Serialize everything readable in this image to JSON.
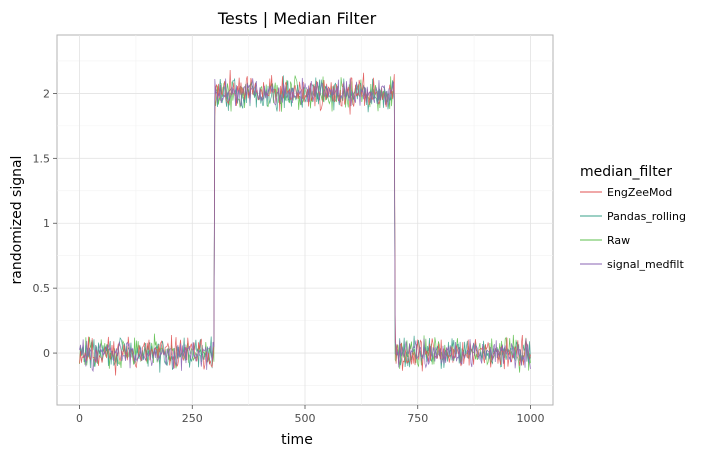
{
  "chart_data": {
    "type": "line",
    "title": "Tests | Median Filter",
    "xlabel": "time",
    "ylabel": "randomized signal",
    "xlim": [
      -50,
      1050
    ],
    "ylim": [
      -0.4,
      2.45
    ],
    "xticks": [
      0,
      250,
      500,
      750,
      1000
    ],
    "xtick_labels": [
      "0",
      "250",
      "500",
      "750",
      "1000"
    ],
    "yticks": [
      0,
      0.5,
      1,
      1.5,
      2
    ],
    "ytick_labels": [
      "0",
      "0.5",
      "1",
      "1.5",
      "2"
    ],
    "grid": true,
    "legend": {
      "title": "median_filter",
      "position": "right"
    },
    "signal": {
      "description_points": "piecewise: level 0 for t<300, level 2 for 300<=t<700, level 0 for t>=700, t from 0 to 1000",
      "t_start": 0,
      "t_end": 1000,
      "step_up": 300,
      "step_down": 700,
      "low_level": 0,
      "high_level": 2,
      "noise_amplitude": 0.1
    },
    "series": [
      {
        "name": "EngZeeMod",
        "color": "#e05252"
      },
      {
        "name": "Pandas_rolling",
        "color": "#3aa08a"
      },
      {
        "name": "Raw",
        "color": "#5cbf4c"
      },
      {
        "name": "signal_medfilt",
        "color": "#8a63b3"
      }
    ]
  }
}
